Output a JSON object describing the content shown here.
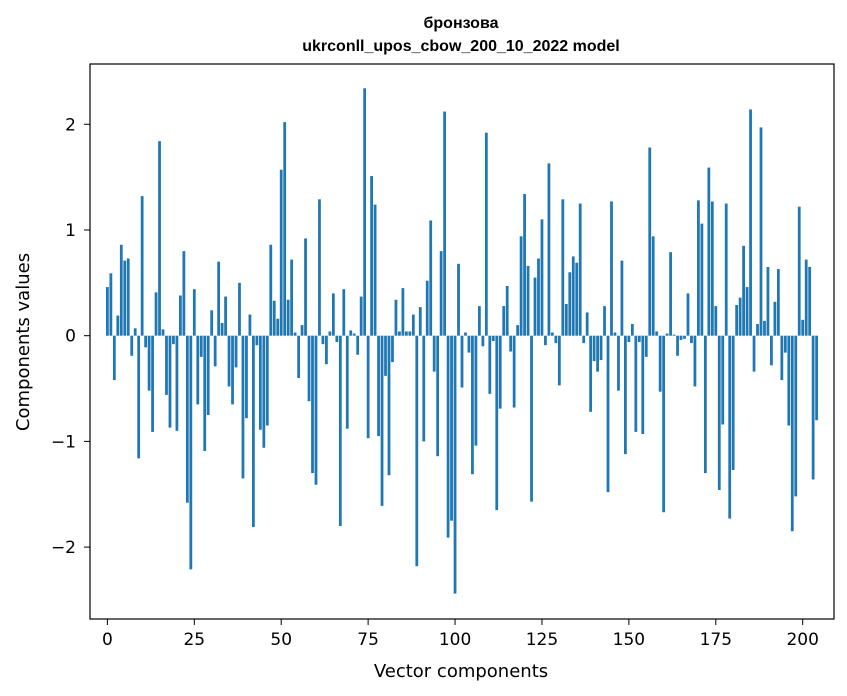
{
  "chart_data": {
    "type": "bar",
    "title": "бронзова",
    "subtitle": "ukrconll_upos_cbow_200_10_2022 model",
    "xlabel": "Vector components",
    "ylabel": "Components values",
    "xlim": [
      -5,
      209
    ],
    "ylim": [
      -2.68,
      2.57
    ],
    "xticks": [
      0,
      25,
      50,
      75,
      100,
      125,
      150,
      175,
      200
    ],
    "yticks": [
      -2,
      -1,
      0,
      1,
      2
    ],
    "ytick_labels": [
      "−2",
      "−1",
      "0",
      "1",
      "2"
    ],
    "bar_color": "#1f77b4",
    "grid": false,
    "legend": "none",
    "values": [
      0.46,
      0.59,
      -0.42,
      0.19,
      0.86,
      0.71,
      0.73,
      -0.19,
      0.07,
      -1.16,
      1.32,
      -0.11,
      -0.52,
      -0.91,
      0.41,
      1.84,
      0.06,
      -0.56,
      -0.87,
      -0.08,
      -0.9,
      0.38,
      0.8,
      -1.58,
      -2.21,
      0.44,
      -0.65,
      -0.2,
      -1.09,
      -0.75,
      0.24,
      -0.29,
      0.7,
      0.12,
      0.37,
      -0.48,
      -0.65,
      -0.3,
      0.5,
      -1.35,
      -0.78,
      0.2,
      -1.81,
      -0.09,
      -0.89,
      -1.06,
      -0.85,
      0.86,
      0.33,
      0.16,
      1.57,
      2.02,
      0.34,
      0.72,
      0.03,
      -0.4,
      0.1,
      0.92,
      -0.62,
      -1.3,
      -1.41,
      1.29,
      -0.08,
      -0.27,
      0.04,
      0.4,
      -0.06,
      -1.8,
      0.44,
      -0.88,
      0.05,
      0.02,
      -0.18,
      0.37,
      2.34,
      -0.97,
      1.51,
      1.24,
      -0.95,
      -1.61,
      -0.38,
      -1.32,
      -0.25,
      0.34,
      0.04,
      0.45,
      0.04,
      0.04,
      0.2,
      -2.18,
      0.27,
      -1.0,
      0.52,
      1.09,
      -0.34,
      -1.14,
      0.8,
      2.12,
      -1.91,
      -1.75,
      -2.44,
      0.68,
      -0.49,
      0.03,
      -0.16,
      -1.31,
      -1.04,
      0.28,
      -0.1,
      1.92,
      -0.55,
      -0.05,
      -1.65,
      -0.69,
      0.28,
      0.47,
      -0.15,
      -0.68,
      0.1,
      0.94,
      1.34,
      0.66,
      -1.57,
      0.55,
      0.73,
      1.1,
      -0.09,
      1.63,
      0.03,
      -0.07,
      -0.47,
      1.29,
      0.3,
      0.6,
      0.75,
      0.69,
      1.25,
      -0.07,
      0.22,
      -0.72,
      -0.24,
      -0.34,
      -0.23,
      0.28,
      -1.48,
      1.27,
      0.03,
      -0.52,
      0.71,
      -1.12,
      -0.06,
      0.11,
      -0.91,
      -0.06,
      -0.93,
      -0.2,
      1.78,
      0.94,
      0.04,
      -0.53,
      -1.67,
      0.02,
      0.79,
      0.01,
      -0.19,
      -0.04,
      -0.03,
      0.4,
      -0.07,
      -0.48,
      1.28,
      1.06,
      -1.3,
      1.59,
      1.27,
      0.28,
      -1.46,
      -0.84,
      1.25,
      -1.73,
      -1.27,
      0.29,
      0.36,
      0.85,
      0.46,
      2.14,
      -0.34,
      0.11,
      1.97,
      0.14,
      0.65,
      -0.28,
      0.32,
      0.63,
      -0.42,
      -0.16,
      -0.85,
      -1.85,
      -1.52,
      1.22,
      0.15,
      0.72,
      0.65,
      -1.36,
      -0.8
    ]
  }
}
